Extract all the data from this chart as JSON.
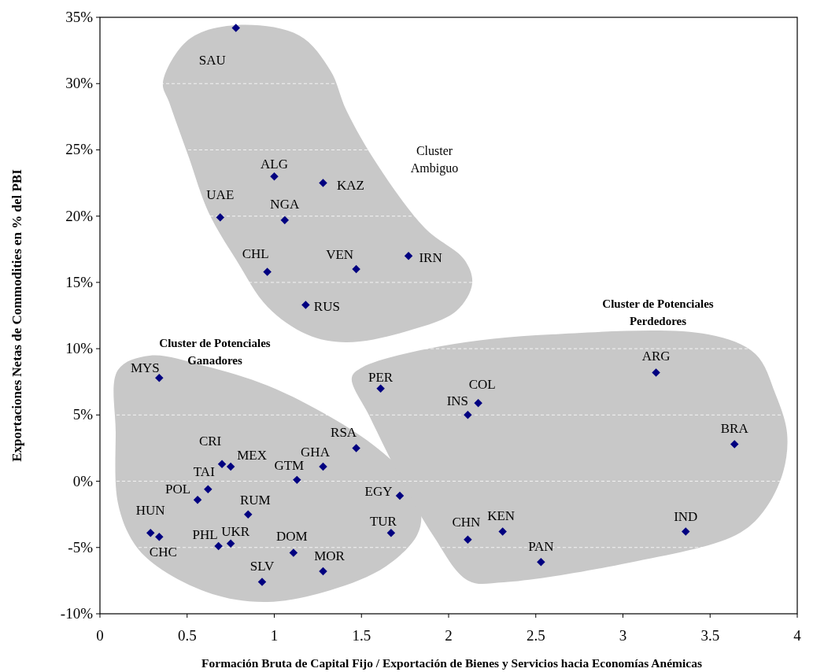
{
  "chart_data": {
    "type": "scatter",
    "xlabel": "Formación  Bruta de Capital Fijo / Exportación de Bienes y Servicios hacia Economías Anémicas",
    "ylabel": "Exportaciones Netas de Commodities en  %  del PBI",
    "x": [
      0.78,
      1.0,
      1.28,
      0.69,
      1.06,
      0.96,
      1.47,
      1.77,
      1.18,
      0.34,
      1.61,
      1.47,
      0.7,
      0.75,
      1.28,
      1.13,
      0.62,
      0.56,
      1.72,
      0.85,
      0.29,
      0.34,
      1.67,
      0.68,
      0.75,
      1.11,
      1.28,
      0.93,
      2.17,
      2.11,
      3.19,
      3.64,
      2.11,
      2.31,
      2.53,
      3.36
    ],
    "values": [
      34.2,
      23.0,
      22.5,
      19.9,
      19.7,
      15.8,
      16.0,
      17.0,
      13.3,
      7.8,
      7.0,
      2.5,
      1.3,
      1.1,
      1.1,
      0.1,
      -0.6,
      -1.4,
      -1.1,
      -2.5,
      -3.9,
      -4.2,
      -3.9,
      -4.9,
      -4.7,
      -5.4,
      -6.8,
      -7.6,
      5.9,
      5.0,
      8.2,
      2.8,
      -4.4,
      -3.8,
      -6.1,
      -3.8
    ],
    "value_labels": [
      "SAU",
      "ALG",
      "KAZ",
      "UAE",
      "NGA",
      "CHL",
      "VEN",
      "IRN",
      "RUS",
      "MYS",
      "PER",
      "RSA",
      "CRI",
      "MEX",
      "GHA",
      "GTM",
      "TAI",
      "POL",
      "EGY",
      "RUM",
      "HUN",
      "CHC",
      "TUR",
      "PHL",
      "UKR",
      "DOM",
      "MOR",
      "SLV",
      "COL",
      "INS",
      "ARG",
      "BRA",
      "CHN",
      "KEN",
      "PAN",
      "IND"
    ],
    "color": "#000080",
    "marker": "diamond",
    "xlim": [
      0,
      4
    ],
    "xticks": [
      0,
      0.5,
      1,
      1.5,
      2,
      2.5,
      3,
      3.5,
      4
    ],
    "ylim": [
      -10,
      35
    ],
    "yticks": [
      {
        "value": -10,
        "label": "-10%"
      },
      {
        "value": -5,
        "label": "-5%"
      },
      {
        "value": 0,
        "label": "0%"
      },
      {
        "value": 5,
        "label": "5%"
      },
      {
        "value": 10,
        "label": "10%"
      },
      {
        "value": 15,
        "label": "15%"
      },
      {
        "value": 20,
        "label": "20%"
      },
      {
        "value": 25,
        "label": "25%"
      },
      {
        "value": 30,
        "label": "30%"
      },
      {
        "value": 35,
        "label": "35%"
      }
    ],
    "grid": "y",
    "annotations": [
      "Cluster\nAmbiguo",
      "Cluster de Potenciales\nGanadores",
      "Cluster de Potenciales\nPerdedores"
    ]
  }
}
